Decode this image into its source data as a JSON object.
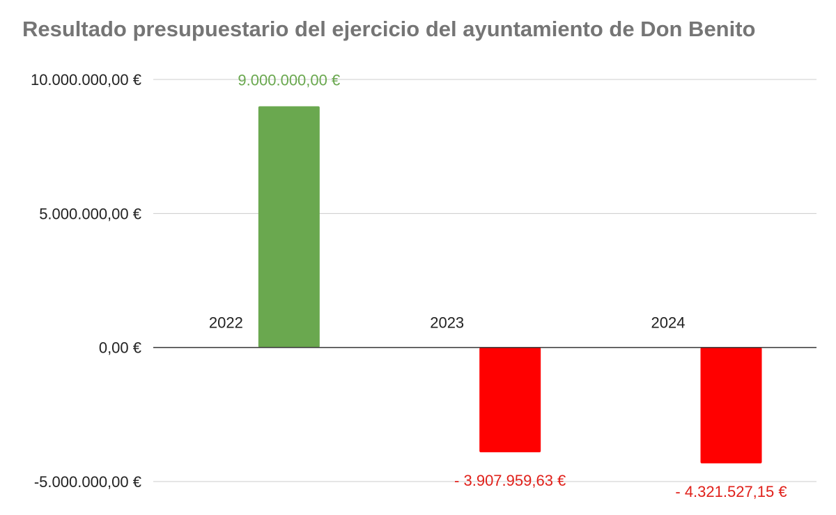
{
  "chart_data": {
    "type": "bar",
    "title": "Resultado presupuestario del ejercicio del ayuntamiento de Don Benito",
    "xlabel": "",
    "ylabel": "",
    "categories": [
      "2022",
      "2023",
      "2024"
    ],
    "values": [
      9000000.0,
      -3907959.63,
      -4321527.15
    ],
    "data_labels": [
      "9.000.000,00 €",
      "- 3.907.959,63 €",
      "- 4.321.527,15 €"
    ],
    "ylim": [
      -5000000,
      10000000
    ],
    "yticks": [
      10000000,
      5000000,
      0,
      -5000000
    ],
    "ytick_labels": [
      "10.000.000,00 €",
      "5.000.000,00 €",
      "0,00 €",
      "-5.000.000,00 €"
    ],
    "grid": true,
    "legend": "none",
    "colors": {
      "positive": "#6aa84f",
      "negative": "#ff0000",
      "positive_label": "#6aa84f",
      "negative_label": "#e0201a",
      "grid": "#cccccc",
      "zero_line": "#333333"
    }
  }
}
